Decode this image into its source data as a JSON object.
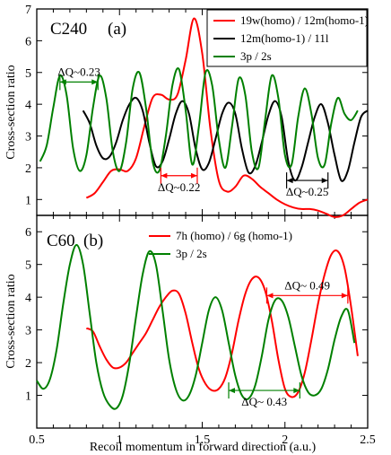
{
  "chart_data": [
    {
      "type": "line",
      "title": "C240",
      "panel_label": "(a)",
      "xlabel": "",
      "ylabel": "Cross-section ratio",
      "xlim": [
        0.5,
        2.5
      ],
      "ylim": [
        0.5,
        7
      ],
      "yticks": [
        1,
        2,
        3,
        4,
        5,
        6,
        7
      ],
      "legend": "top-right",
      "series": [
        {
          "name": "19w(homo) / 12m(homo-1)",
          "color": "#ff0000",
          "x": [
            0.8,
            0.85,
            0.9,
            0.95,
            1.0,
            1.05,
            1.1,
            1.15,
            1.2,
            1.25,
            1.3,
            1.35,
            1.4,
            1.45,
            1.5,
            1.55,
            1.6,
            1.65,
            1.7,
            1.75,
            1.8,
            1.85,
            1.9,
            1.95,
            2.0,
            2.05,
            2.1,
            2.15,
            2.2,
            2.25,
            2.3,
            2.35,
            2.4,
            2.45,
            2.5
          ],
          "y": [
            1.05,
            1.2,
            1.55,
            1.9,
            1.95,
            1.9,
            2.3,
            3.3,
            4.2,
            4.3,
            4.15,
            4.3,
            5.4,
            6.7,
            5.6,
            3.2,
            1.6,
            1.25,
            1.4,
            1.75,
            1.65,
            1.4,
            1.2,
            1.0,
            0.85,
            0.75,
            0.7,
            0.7,
            0.65,
            0.55,
            0.45,
            0.5,
            0.7,
            0.9,
            1.0
          ]
        },
        {
          "name": "12m(homo-1) / 11l",
          "color": "#000000",
          "x": [
            0.78,
            0.82,
            0.86,
            0.9,
            0.94,
            0.98,
            1.02,
            1.06,
            1.1,
            1.14,
            1.18,
            1.22,
            1.26,
            1.3,
            1.34,
            1.38,
            1.42,
            1.46,
            1.5,
            1.54,
            1.58,
            1.62,
            1.66,
            1.7,
            1.74,
            1.78,
            1.82,
            1.86,
            1.9,
            1.94,
            1.98,
            2.02,
            2.06,
            2.1,
            2.14,
            2.18,
            2.22,
            2.26,
            2.3,
            2.34,
            2.38,
            2.42,
            2.46,
            2.5
          ],
          "y": [
            3.8,
            3.4,
            2.7,
            2.3,
            2.35,
            2.8,
            3.5,
            4.0,
            4.2,
            3.8,
            2.8,
            2.05,
            2.2,
            2.9,
            3.7,
            4.1,
            3.7,
            2.6,
            1.95,
            2.15,
            2.9,
            3.7,
            4.05,
            3.7,
            2.6,
            1.85,
            2.05,
            2.8,
            3.65,
            4.1,
            3.6,
            2.2,
            1.6,
            2.0,
            2.8,
            3.6,
            4.0,
            3.4,
            2.4,
            1.6,
            1.9,
            2.8,
            3.6,
            3.8
          ]
        },
        {
          "name": "3p / 2s",
          "color": "#008000",
          "x": [
            0.52,
            0.56,
            0.6,
            0.64,
            0.68,
            0.72,
            0.76,
            0.8,
            0.84,
            0.88,
            0.92,
            0.96,
            1.0,
            1.04,
            1.08,
            1.12,
            1.16,
            1.2,
            1.24,
            1.28,
            1.32,
            1.36,
            1.4,
            1.44,
            1.48,
            1.52,
            1.56,
            1.6,
            1.64,
            1.68,
            1.72,
            1.76,
            1.8,
            1.84,
            1.88,
            1.92,
            1.96,
            2.0,
            2.04,
            2.08,
            2.12,
            2.16,
            2.2,
            2.24,
            2.28,
            2.32,
            2.36,
            2.4,
            2.44
          ],
          "y": [
            2.2,
            2.7,
            3.9,
            4.9,
            4.3,
            2.6,
            1.9,
            2.4,
            3.9,
            4.9,
            4.2,
            2.5,
            1.9,
            2.8,
            4.5,
            5.0,
            3.9,
            2.2,
            1.9,
            3.0,
            4.6,
            5.1,
            3.8,
            2.1,
            3.3,
            5.0,
            4.6,
            2.9,
            2.0,
            3.3,
            4.8,
            4.3,
            2.5,
            2.0,
            3.5,
            4.9,
            4.2,
            2.4,
            2.1,
            3.6,
            4.5,
            3.7,
            2.3,
            2.1,
            3.4,
            4.2,
            3.7,
            3.5,
            3.8
          ]
        }
      ],
      "annotations": [
        {
          "text": "ΔQ~0.23",
          "x1": 0.64,
          "x2": 0.87,
          "y": 4.7,
          "color": "#008000"
        },
        {
          "text": "ΔQ~0.22",
          "x1": 1.25,
          "x2": 1.47,
          "y": 1.75,
          "color": "#ff0000"
        },
        {
          "text": "ΔQ~0.25",
          "x1": 2.01,
          "x2": 2.26,
          "y": 1.6,
          "color": "#000000"
        }
      ]
    },
    {
      "type": "line",
      "title": "C60",
      "panel_label": "(b)",
      "xlabel": "Recoil momentum in forward direction (a.u.)",
      "ylabel": "Cross-section ratio",
      "xlim": [
        0.5,
        2.5
      ],
      "ylim": [
        0,
        6.5
      ],
      "yticks": [
        1,
        2,
        3,
        4,
        5,
        6
      ],
      "xticks": [
        0.5,
        1,
        1.5,
        2,
        2.5
      ],
      "legend": "top-right",
      "series": [
        {
          "name": "7h (homo) / 6g (homo-1)",
          "color": "#ff0000",
          "x": [
            0.8,
            0.84,
            0.88,
            0.92,
            0.96,
            1.0,
            1.04,
            1.08,
            1.12,
            1.16,
            1.2,
            1.24,
            1.28,
            1.32,
            1.36,
            1.4,
            1.44,
            1.48,
            1.52,
            1.56,
            1.6,
            1.64,
            1.68,
            1.72,
            1.76,
            1.8,
            1.84,
            1.88,
            1.92,
            1.96,
            2.0,
            2.04,
            2.08,
            2.12,
            2.16,
            2.2,
            2.24,
            2.28,
            2.32,
            2.36,
            2.4,
            2.44
          ],
          "y": [
            3.05,
            2.95,
            2.5,
            2.1,
            1.85,
            1.85,
            2.0,
            2.3,
            2.6,
            2.9,
            3.3,
            3.7,
            4.0,
            4.2,
            4.1,
            3.5,
            2.6,
            1.8,
            1.35,
            1.15,
            1.2,
            1.55,
            2.3,
            3.3,
            4.1,
            4.55,
            4.6,
            4.2,
            3.3,
            2.1,
            1.2,
            0.95,
            1.1,
            1.7,
            2.7,
            3.8,
            4.7,
            5.3,
            5.4,
            4.9,
            3.7,
            2.2
          ]
        },
        {
          "name": "3p / 2s",
          "color": "#008000",
          "x": [
            0.5,
            0.54,
            0.58,
            0.62,
            0.66,
            0.7,
            0.74,
            0.78,
            0.82,
            0.86,
            0.9,
            0.94,
            0.98,
            1.02,
            1.06,
            1.1,
            1.14,
            1.18,
            1.22,
            1.26,
            1.3,
            1.34,
            1.38,
            1.42,
            1.46,
            1.5,
            1.54,
            1.58,
            1.62,
            1.66,
            1.7,
            1.74,
            1.78,
            1.82,
            1.86,
            1.9,
            1.94,
            1.98,
            2.02,
            2.06,
            2.1,
            2.14,
            2.18,
            2.22,
            2.26,
            2.3,
            2.34,
            2.38,
            2.42
          ],
          "y": [
            1.45,
            1.2,
            1.5,
            2.4,
            3.8,
            5.0,
            5.6,
            5.0,
            3.5,
            2.0,
            1.1,
            0.7,
            0.6,
            1.0,
            2.0,
            3.4,
            4.7,
            5.4,
            5.0,
            3.6,
            2.1,
            1.2,
            0.85,
            1.0,
            1.6,
            2.6,
            3.6,
            4.0,
            3.6,
            2.6,
            1.6,
            1.0,
            0.9,
            1.3,
            2.2,
            3.3,
            3.9,
            3.9,
            3.4,
            2.5,
            1.6,
            1.1,
            1.0,
            1.2,
            1.8,
            2.7,
            3.4,
            3.6,
            2.6
          ]
        }
      ],
      "annotations": [
        {
          "text": "ΔQ~ 0.49",
          "x1": 1.89,
          "x2": 2.38,
          "y": 4.05,
          "color": "#ff0000"
        },
        {
          "text": "ΔQ~ 0.43",
          "x1": 1.66,
          "x2": 2.09,
          "y": 1.15,
          "color": "#008000"
        }
      ]
    }
  ]
}
